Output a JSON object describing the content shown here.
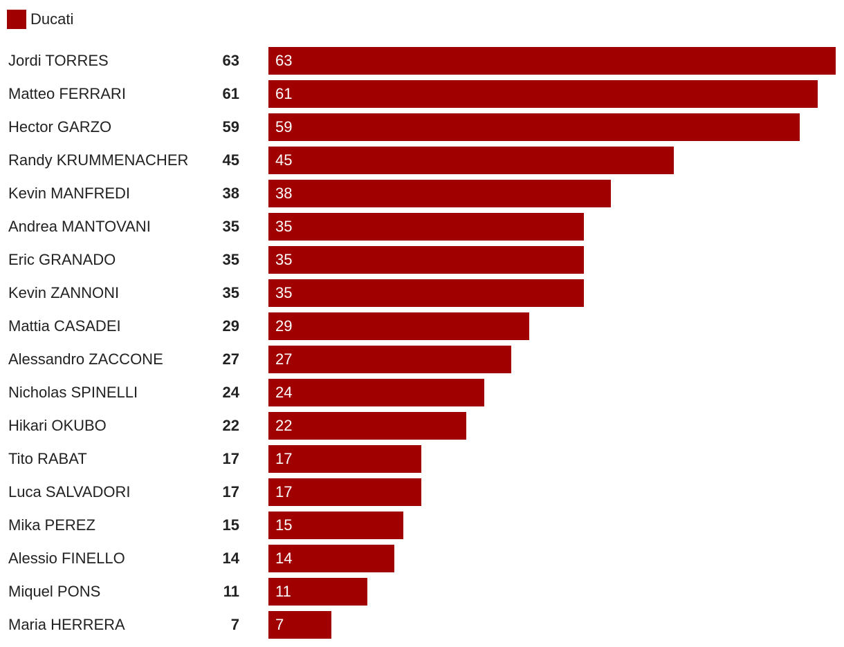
{
  "chart_data": {
    "type": "bar",
    "orientation": "horizontal",
    "series": [
      {
        "name": "Ducati",
        "color": "#a00000",
        "values": [
          63,
          61,
          59,
          45,
          38,
          35,
          35,
          35,
          29,
          27,
          24,
          22,
          17,
          17,
          15,
          14,
          11,
          7
        ]
      }
    ],
    "categories": [
      "Jordi TORRES",
      "Matteo FERRARI",
      "Hector GARZO",
      "Randy KRUMMENACHER",
      "Kevin MANFREDI",
      "Andrea MANTOVANI",
      "Eric GRANADO",
      "Kevin ZANNONI",
      "Mattia CASADEI",
      "Alessandro ZACCONE",
      "Nicholas SPINELLI",
      "Hikari OKUBO",
      "Tito RABAT",
      "Luca SALVADORI",
      "Mika PEREZ",
      "Alessio FINELLO",
      "Miquel PONS",
      "Maria HERRERA"
    ],
    "value_labels": [
      "63",
      "61",
      "59",
      "45",
      "38",
      "35",
      "35",
      "35",
      "29",
      "27",
      "24",
      "22",
      "17",
      "17",
      "15",
      "14",
      "11",
      "7"
    ],
    "xlim": [
      0,
      63
    ],
    "grid": false,
    "legend": "top-left",
    "title": "",
    "xlabel": "",
    "ylabel": ""
  }
}
